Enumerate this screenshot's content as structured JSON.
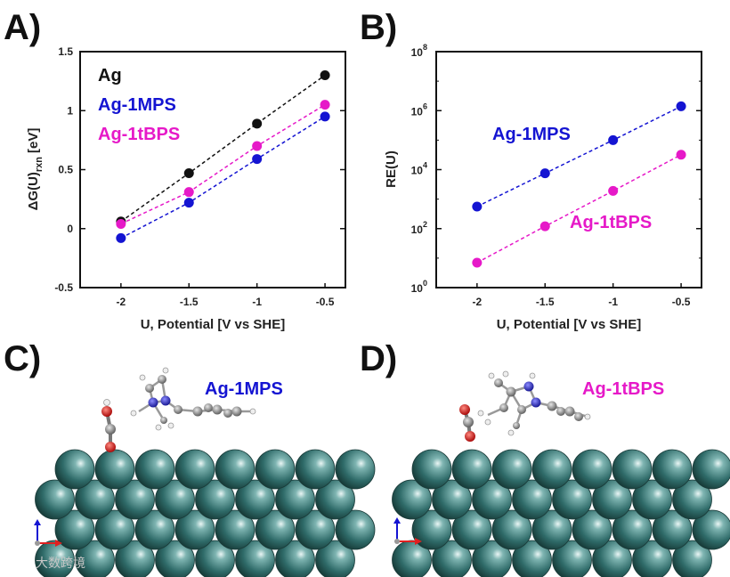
{
  "panels": {
    "a": "A)",
    "b": "B)",
    "c": "C)",
    "d": "D)"
  },
  "colors": {
    "Ag": "#111111",
    "Ag-1MPS": "#1414d2",
    "Ag-1tBPS": "#e619c8",
    "silver_atom": "#2f6b69"
  },
  "chart_data": [
    {
      "type": "scatter",
      "panel": "A)",
      "xlabel": "U, Potential [V vs SHE]",
      "ylabel_main": "ΔG(U)",
      "ylabel_sub": "rxn",
      "ylabel_unit": "[eV]",
      "x": [
        -2,
        -1.5,
        -1,
        -0.5
      ],
      "xticks": [
        "-2",
        "-1.5",
        "-1",
        "-0.5"
      ],
      "yticks": [
        "-0.5",
        "0",
        "0.5",
        "1",
        "1.5"
      ],
      "xlim": [
        -2.3,
        -0.35
      ],
      "ylim": [
        -0.5,
        1.5
      ],
      "legend_placement": "top-left",
      "grid": false,
      "series": [
        {
          "name": "Ag",
          "color": "#111111",
          "values": [
            0.06,
            0.47,
            0.89,
            1.3
          ]
        },
        {
          "name": "Ag-1MPS",
          "color": "#1414d2",
          "values": [
            -0.08,
            0.22,
            0.59,
            0.95
          ]
        },
        {
          "name": "Ag-1tBPS",
          "color": "#e619c8",
          "values": [
            0.04,
            0.31,
            0.7,
            1.05
          ]
        }
      ]
    },
    {
      "type": "scatter",
      "panel": "B)",
      "xlabel": "U, Potential [V vs SHE]",
      "ylabel": "RE(U)",
      "yscale": "log",
      "x": [
        -2,
        -1.5,
        -1,
        -0.5
      ],
      "xticks": [
        "-2",
        "-1.5",
        "-1",
        "-0.5"
      ],
      "yticks": [
        {
          "base": "10",
          "exp": "0"
        },
        {
          "base": "10",
          "exp": "2"
        },
        {
          "base": "10",
          "exp": "4"
        },
        {
          "base": "10",
          "exp": "6"
        },
        {
          "base": "10",
          "exp": "8"
        }
      ],
      "xlim": [
        -2.3,
        -0.35
      ],
      "ylim": [
        1,
        100000000
      ],
      "grid": false,
      "series": [
        {
          "name": "Ag-1MPS",
          "color": "#1414d2",
          "values": [
            560,
            7500,
            100000,
            1400000
          ]
        },
        {
          "name": "Ag-1tBPS",
          "color": "#e619c8",
          "values": [
            7,
            120,
            1900,
            32000
          ]
        }
      ]
    }
  ],
  "structures": {
    "c_label": "Ag-1MPS",
    "d_label": "Ag-1tBPS"
  },
  "watermark": "大数跨境"
}
